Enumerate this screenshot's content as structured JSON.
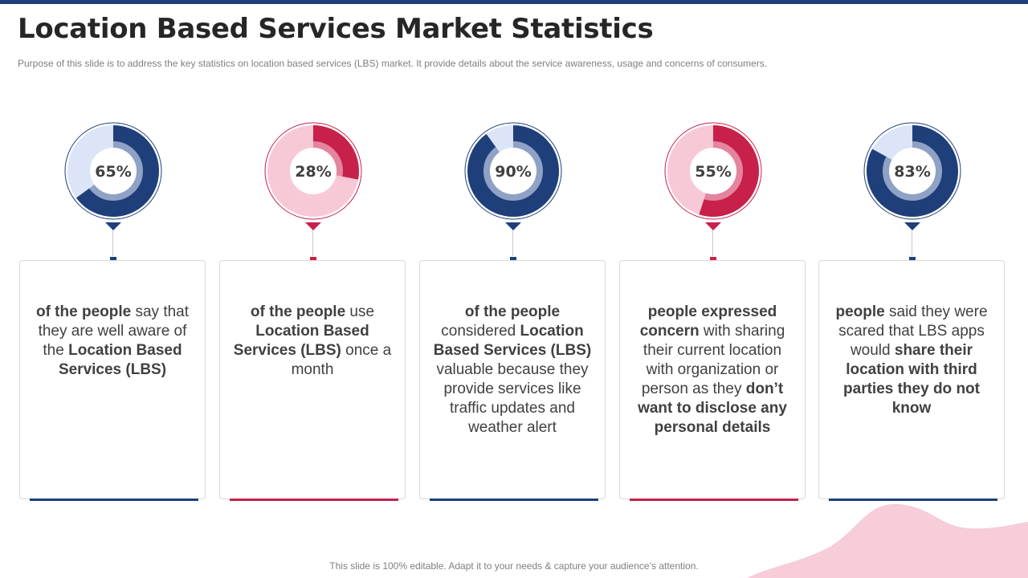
{
  "header": {
    "title": "Location Based Services Market Statistics",
    "subtitle": "Purpose of this slide is to address the key statistics on location based services (LBS) market. It provide  details about the service  awareness, usage and concerns of consumers."
  },
  "footer": {
    "note": "This slide is 100% editable. Adapt it to your needs & capture your audience’s attention."
  },
  "colors": {
    "navy": "#1f3f7a",
    "navy_light": "#dbe5f7",
    "crimson": "#c7204b",
    "crimson_light": "#f7c9d6",
    "blob": "#f6cdd8"
  },
  "chart_data": {
    "type": "donut",
    "categories": [
      "Aware of LBS",
      "Use LBS once a month",
      "Consider LBS valuable",
      "Concern sharing location",
      "Scared LBS apps share location"
    ],
    "values": [
      65,
      28,
      90,
      55,
      83
    ],
    "labels": [
      "65%",
      "28%",
      "90%",
      "55%",
      "83%"
    ],
    "themes": [
      "navy",
      "crimson",
      "navy",
      "crimson",
      "navy"
    ]
  },
  "cards": [
    {
      "parts": [
        {
          "text": "of the people",
          "bold": true
        },
        {
          "text": " say that they are well aware of the ",
          "bold": false
        },
        {
          "text": "Location Based Services (LBS)",
          "bold": true
        }
      ]
    },
    {
      "parts": [
        {
          "text": "of the people",
          "bold": true
        },
        {
          "text": " use ",
          "bold": false
        },
        {
          "text": "Location Based Services (LBS)",
          "bold": true
        },
        {
          "text": " once a month",
          "bold": false
        }
      ]
    },
    {
      "parts": [
        {
          "text": "of the people",
          "bold": true
        },
        {
          "text": " considered ",
          "bold": false
        },
        {
          "text": "Location Based Services (LBS)",
          "bold": true
        },
        {
          "text": " valuable because they provide services like traffic updates and weather alert",
          "bold": false
        }
      ]
    },
    {
      "parts": [
        {
          "text": "people expressed concern",
          "bold": true
        },
        {
          "text": " with sharing their current location with organization  or person as they ",
          "bold": false
        },
        {
          "text": "don’t want to disclose any personal details",
          "bold": true
        }
      ]
    },
    {
      "parts": [
        {
          "text": "people",
          "bold": true
        },
        {
          "text": " said they were scared that LBS apps would ",
          "bold": false
        },
        {
          "text": "share their location with third parties they do not know",
          "bold": true
        }
      ]
    }
  ]
}
